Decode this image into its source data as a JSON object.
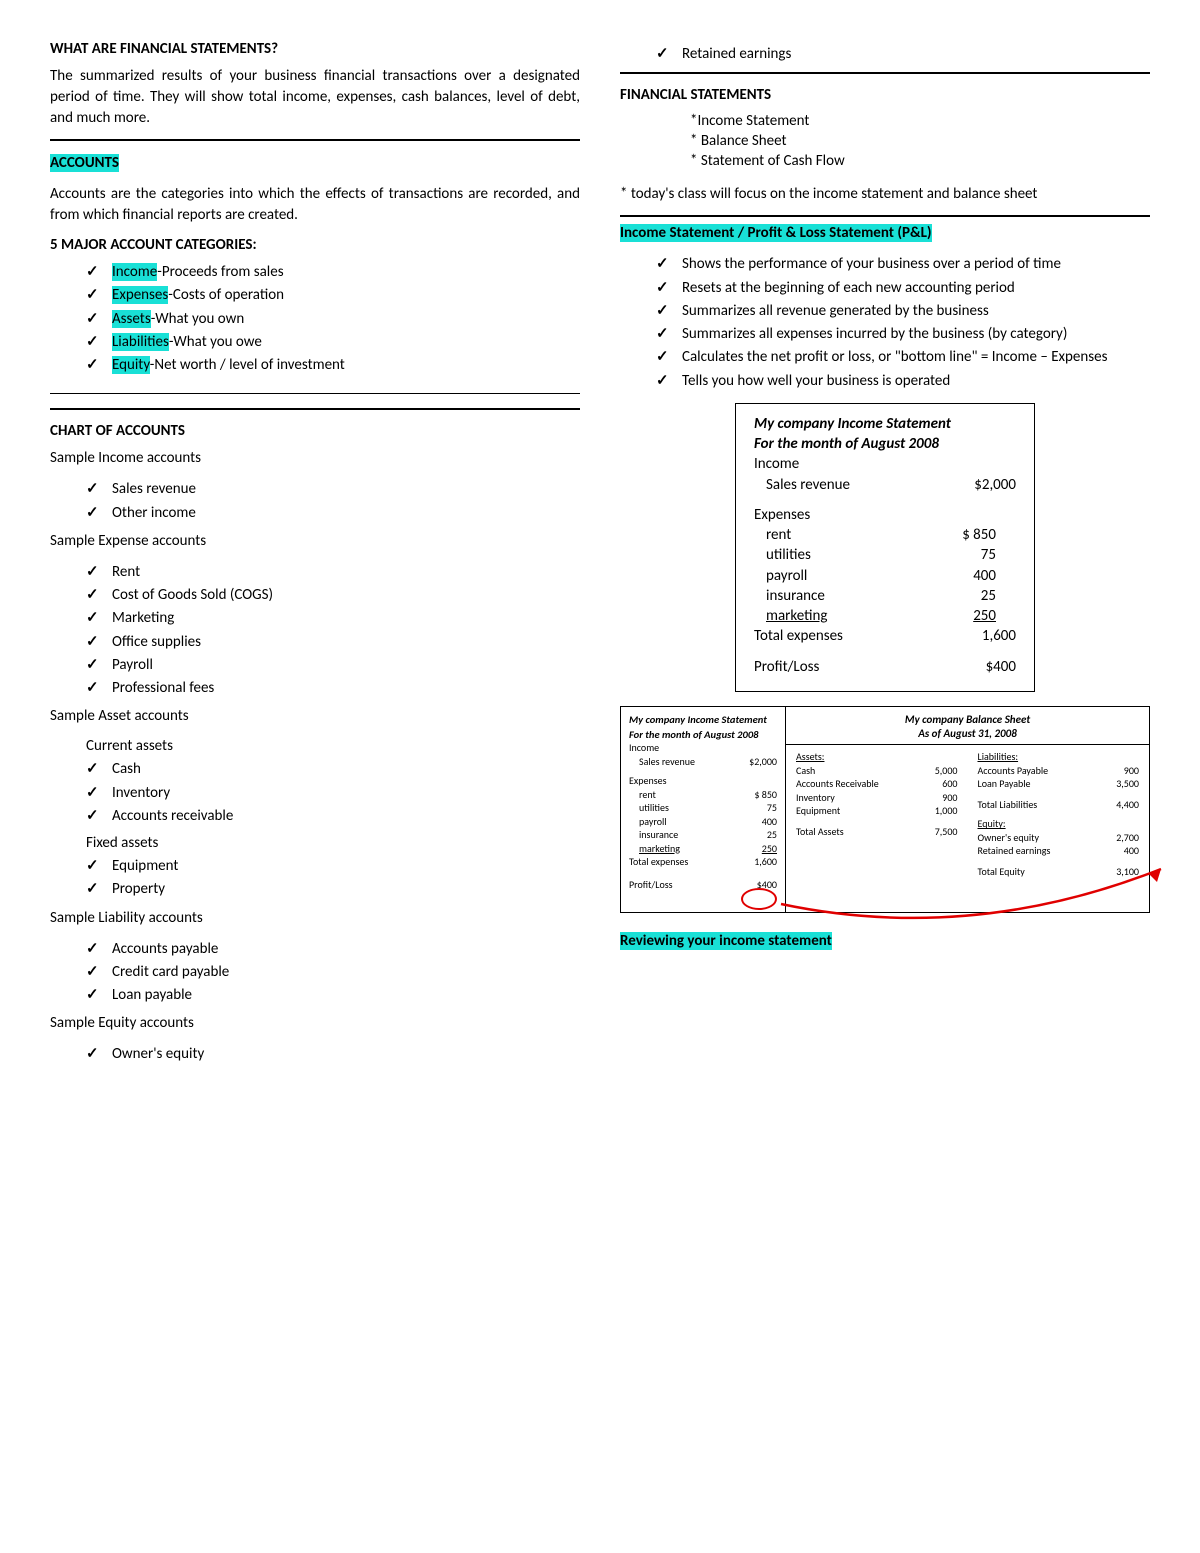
{
  "left": {
    "h1": "WHAT ARE FINANCIAL STATEMENTS?",
    "p1": "The summarized results of your business financial transactions over a designated period of time. They will show total income, expenses, cash balances, level of debt, and much more.",
    "accounts_label": "ACCOUNTS",
    "p2": "Accounts are the categories into which the effects of transactions are recorded, and from which financial reports are created.",
    "h2": "5 MAJOR ACCOUNT CATEGORIES:",
    "cats": [
      {
        "term": "Income",
        "desc": "-Proceeds from sales"
      },
      {
        "term": "Expenses",
        "desc": "-Costs of operation"
      },
      {
        "term": "Assets",
        "desc": "-What you own"
      },
      {
        "term": "Liabilities",
        "desc": "-What you owe"
      },
      {
        "term": "Equity",
        "desc": "-Net worth / level of investment"
      }
    ],
    "h3": "CHART OF ACCOUNTS",
    "s_income_h": "Sample Income accounts",
    "s_income": [
      "Sales revenue",
      "Other income"
    ],
    "s_expense_h": "Sample Expense accounts",
    "s_expense": [
      "Rent",
      "Cost of Goods Sold (COGS)",
      "Marketing",
      "Office supplies",
      "Payroll",
      "Professional fees"
    ],
    "s_asset_h": "Sample Asset accounts",
    "s_asset_sub1": "Current assets",
    "s_asset_cur": [
      "Cash",
      "Inventory",
      "Accounts receivable"
    ],
    "s_asset_sub2": "Fixed assets",
    "s_asset_fix": [
      "Equipment",
      "Property"
    ],
    "s_liab_h": "Sample Liability accounts",
    "s_liab": [
      "Accounts payable",
      "Credit card payable",
      "Loan payable"
    ],
    "s_eq_h": "Sample Equity accounts",
    "s_eq": [
      "Owner's equity"
    ]
  },
  "right": {
    "carry": [
      "Retained earnings"
    ],
    "h1": "FINANCIAL STATEMENTS",
    "fs_list": [
      "*Income Statement",
      "* Balance Sheet",
      "* Statement of Cash Flow"
    ],
    "note": "* today's class will focus on the income statement and balance sheet",
    "is_header": "Income Statement / Profit & Loss Statement (P&L)",
    "is_bullets": [
      "Shows the performance of your business over a period of time",
      "Resets at the beginning of each new accounting period",
      "Summarizes all revenue generated by the business",
      "Summarizes all expenses incurred by the business (by category)",
      "Calculates the net profit or loss, or \"bottom line\" = Income – Expenses",
      "Tells you how well your business is operated"
    ],
    "stmt": {
      "t1": "My company Income Statement",
      "t2": "For the month of August 2008",
      "income_lbl": "Income",
      "sr_lbl": "Sales revenue",
      "sr_val": "$2,000",
      "exp_lbl": "Expenses",
      "rows": [
        {
          "lbl": "rent",
          "val": "$ 850"
        },
        {
          "lbl": "utilities",
          "val": "75"
        },
        {
          "lbl": "payroll",
          "val": "400"
        },
        {
          "lbl": "insurance",
          "val": "25"
        }
      ],
      "last_lbl": "marketing",
      "last_val": "250",
      "tot_lbl": "Total expenses",
      "tot_val": "1,600",
      "pl_lbl": "Profit/Loss",
      "pl_val": "$400"
    },
    "mini": {
      "is_t1": "My company Income Statement",
      "is_t2": "For the month of August 2008",
      "income_lbl": "Income",
      "sr_lbl": "Sales revenue",
      "sr_val": "$2,000",
      "exp_lbl": "Expenses",
      "rows": [
        {
          "lbl": "rent",
          "val": "$ 850"
        },
        {
          "lbl": "utilities",
          "val": "75"
        },
        {
          "lbl": "payroll",
          "val": "400"
        },
        {
          "lbl": "insurance",
          "val": "25"
        }
      ],
      "last_lbl": "marketing",
      "last_val": "250",
      "tot_lbl": "Total expenses",
      "tot_val": "1,600",
      "pl_lbl": "Profit/Loss",
      "pl_val": "$400",
      "bs_t1": "My company Balance Sheet",
      "bs_t2": "As of August 31, 2008",
      "assets_h": "Assets:",
      "assets": [
        {
          "lbl": "Cash",
          "val": "5,000"
        },
        {
          "lbl": "Accounts Receivable",
          "val": "600"
        },
        {
          "lbl": "Inventory",
          "val": "900"
        },
        {
          "lbl": "Equipment",
          "val": "1,000"
        }
      ],
      "assets_tot_lbl": "Total Assets",
      "assets_tot_val": "7,500",
      "liab_h": "Liabilities:",
      "liab": [
        {
          "lbl": "Accounts Payable",
          "val": "900"
        },
        {
          "lbl": "Loan Payable",
          "val": "3,500"
        }
      ],
      "liab_tot_lbl": "Total Liabilities",
      "liab_tot_val": "4,400",
      "eq_h": "Equity:",
      "eq": [
        {
          "lbl": "Owner's equity",
          "val": "2,700"
        },
        {
          "lbl": "Retained earnings",
          "val": "400"
        }
      ],
      "eq_tot_lbl": "Total Equity",
      "eq_tot_val": "3,100"
    },
    "review_h": "Reviewing your income statement"
  }
}
